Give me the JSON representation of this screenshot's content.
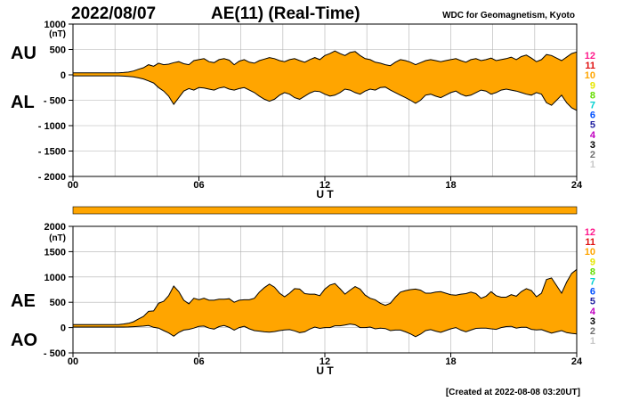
{
  "header": {
    "date": "2022/08/07",
    "title": "AE(11) (Real-Time)",
    "source": "WDC for Geomagnetism, Kyoto"
  },
  "footer": {
    "created": "[Created at 2022-08-08 03:20UT]"
  },
  "colors": {
    "fill": "#ffa500",
    "line": "#000000",
    "grid": "#b0b0b0"
  },
  "station_legend": {
    "labels": [
      "12",
      "11",
      "10",
      "9",
      "8",
      "7",
      "6",
      "5",
      "4",
      "3",
      "2",
      "1"
    ],
    "colors": [
      "#ff1a8c",
      "#e01010",
      "#ffa500",
      "#e6e600",
      "#66dd00",
      "#00d0d0",
      "#0050ff",
      "#2020a0",
      "#c000c0",
      "#000000",
      "#707070",
      "#c8c8c8"
    ]
  },
  "chart_data": [
    {
      "type": "area",
      "series": [
        {
          "name": "AU",
          "values": [
            40,
            40,
            40,
            40,
            40,
            40,
            40,
            40,
            40,
            40,
            45,
            55,
            75,
            110,
            140,
            200,
            170,
            230,
            200,
            210,
            240,
            260,
            220,
            200,
            280,
            300,
            320,
            260,
            240,
            300,
            320,
            290,
            200,
            270,
            300,
            250,
            230,
            280,
            310,
            340,
            320,
            280,
            260,
            300,
            320,
            280,
            250,
            300,
            340,
            300,
            380,
            420,
            470,
            420,
            380,
            440,
            460,
            380,
            320,
            300,
            250,
            230,
            200,
            180,
            250,
            300,
            280,
            250,
            200,
            240,
            280,
            300,
            280,
            260,
            280,
            300,
            320,
            280,
            250,
            300,
            320,
            280,
            300,
            330,
            280,
            300,
            320,
            350,
            300,
            360,
            390,
            330,
            260,
            300,
            400,
            380,
            330,
            280,
            350,
            420,
            450
          ]
        },
        {
          "name": "AL",
          "values": [
            -20,
            -20,
            -20,
            -20,
            -20,
            -20,
            -20,
            -20,
            -20,
            -20,
            -25,
            -30,
            -40,
            -60,
            -80,
            -120,
            -160,
            -250,
            -320,
            -420,
            -580,
            -450,
            -320,
            -270,
            -300,
            -250,
            -260,
            -280,
            -300,
            -260,
            -240,
            -280,
            -300,
            -270,
            -250,
            -300,
            -350,
            -420,
            -480,
            -520,
            -480,
            -400,
            -350,
            -380,
            -450,
            -480,
            -420,
            -360,
            -320,
            -330,
            -380,
            -420,
            -400,
            -350,
            -280,
            -300,
            -350,
            -380,
            -320,
            -280,
            -300,
            -250,
            -240,
            -300,
            -350,
            -400,
            -450,
            -500,
            -560,
            -500,
            -400,
            -380,
            -420,
            -450,
            -400,
            -350,
            -320,
            -380,
            -420,
            -400,
            -350,
            -300,
            -320,
            -380,
            -350,
            -300,
            -280,
            -300,
            -320,
            -350,
            -380,
            -400,
            -350,
            -380,
            -550,
            -600,
            -500,
            -400,
            -550,
            -650,
            -700
          ]
        }
      ],
      "x_range": [
        0,
        24
      ],
      "ylim": [
        -2000,
        1000
      ],
      "x_ticks": [
        "00",
        "06",
        "12",
        "18",
        "24"
      ],
      "y_ticks": [
        "1000",
        "500",
        "0",
        "- 500",
        "- 1000",
        "- 1500",
        "- 2000"
      ],
      "unit": "(nT)",
      "xlabel": "U T",
      "upper_label": "AU",
      "lower_label": "AL",
      "grid": true
    },
    {
      "type": "area",
      "series": [
        {
          "name": "AE",
          "values": [
            60,
            60,
            60,
            60,
            60,
            60,
            60,
            60,
            60,
            60,
            70,
            85,
            115,
            170,
            220,
            320,
            330,
            480,
            520,
            630,
            820,
            710,
            540,
            470,
            580,
            550,
            580,
            540,
            540,
            560,
            560,
            570,
            500,
            540,
            550,
            550,
            580,
            700,
            790,
            860,
            800,
            680,
            610,
            680,
            770,
            760,
            670,
            660,
            660,
            630,
            760,
            840,
            870,
            770,
            660,
            740,
            810,
            760,
            640,
            580,
            550,
            480,
            440,
            480,
            600,
            700,
            730,
            750,
            760,
            740,
            680,
            680,
            700,
            710,
            680,
            650,
            640,
            660,
            670,
            700,
            670,
            580,
            620,
            710,
            630,
            600,
            600,
            650,
            620,
            710,
            770,
            730,
            610,
            680,
            950,
            980,
            830,
            680,
            900,
            1070,
            1150
          ]
        },
        {
          "name": "AO",
          "values": [
            10,
            10,
            10,
            10,
            10,
            10,
            10,
            10,
            10,
            10,
            10,
            12,
            17,
            25,
            30,
            40,
            5,
            -10,
            -60,
            -105,
            -170,
            -95,
            -50,
            -35,
            -10,
            25,
            30,
            -10,
            -30,
            20,
            40,
            5,
            -50,
            0,
            25,
            -25,
            -60,
            -70,
            -85,
            -90,
            -80,
            -60,
            -45,
            -40,
            -65,
            -100,
            -85,
            -30,
            10,
            -15,
            0,
            0,
            35,
            35,
            50,
            70,
            55,
            0,
            0,
            10,
            -25,
            -10,
            -20,
            -60,
            -50,
            -50,
            -85,
            -125,
            -180,
            -130,
            -60,
            -40,
            -70,
            -95,
            -60,
            -25,
            0,
            -50,
            -85,
            -50,
            -15,
            -10,
            -10,
            -25,
            -35,
            0,
            20,
            25,
            -10,
            5,
            5,
            -35,
            -45,
            -40,
            -75,
            -110,
            -85,
            -60,
            -100,
            -115,
            -125
          ]
        }
      ],
      "x_range": [
        0,
        24
      ],
      "ylim": [
        -500,
        2000
      ],
      "x_ticks": [
        "00",
        "06",
        "12",
        "18",
        "24"
      ],
      "y_ticks": [
        "2000",
        "1500",
        "1000",
        "500",
        "0",
        "- 500"
      ],
      "unit": "(nT)",
      "xlabel": "U T",
      "upper_label": "AE",
      "lower_label": "AO",
      "grid": true
    }
  ]
}
